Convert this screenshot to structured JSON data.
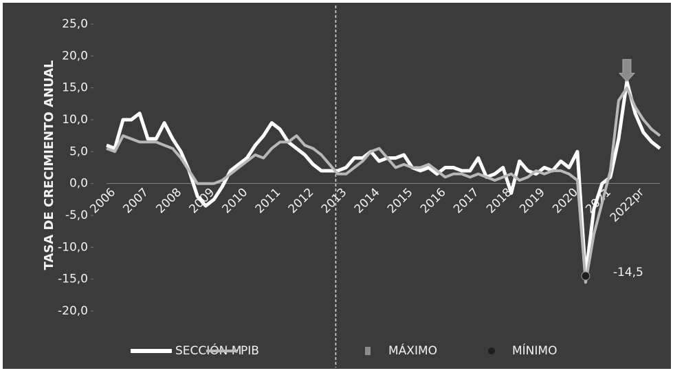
{
  "chart_data": {
    "type": "line",
    "y_axis_label": "TASA DE CRECIMIENTO ANUAL",
    "categories": [
      "2006",
      null,
      null,
      null,
      "2007",
      null,
      null,
      null,
      "2008",
      null,
      null,
      null,
      "2009",
      null,
      null,
      null,
      "2010",
      null,
      null,
      null,
      "2011",
      null,
      null,
      null,
      "2012",
      null,
      null,
      null,
      "2013",
      null,
      null,
      null,
      "2014",
      null,
      null,
      null,
      "2015",
      null,
      null,
      null,
      "2016",
      null,
      null,
      null,
      "2017",
      null,
      null,
      null,
      "2018",
      null,
      null,
      null,
      "2019",
      null,
      null,
      null,
      "2020",
      null,
      null,
      null,
      "2021",
      null,
      null,
      null,
      "2022pr",
      null,
      null,
      null
    ],
    "series": [
      {
        "name": "SECCIÓN M",
        "color": "#ffffff",
        "values": [
          6,
          5.5,
          10,
          10,
          11,
          7,
          7,
          9.5,
          7,
          5,
          2,
          -2,
          -3.5,
          -2.5,
          -0.5,
          2,
          3,
          4,
          6,
          7.5,
          9.5,
          8.5,
          6.5,
          5.5,
          4.5,
          3,
          2,
          2,
          2,
          2.5,
          4,
          4,
          5,
          3.5,
          4,
          4,
          4.5,
          2.5,
          2,
          2.5,
          1.5,
          2.5,
          2.5,
          2,
          2,
          4,
          1,
          1.5,
          2.5,
          -1.5,
          3.5,
          2,
          1.5,
          2.5,
          2,
          3.5,
          2.5,
          5,
          -14.5,
          -4,
          0,
          1,
          7,
          16,
          11,
          8,
          6.5,
          5.5
        ]
      },
      {
        "name": "PIB",
        "color": "#b8b8b8",
        "values": [
          5.5,
          5,
          7.5,
          7,
          6.5,
          6.5,
          6.5,
          6,
          5.5,
          4,
          2,
          0,
          0,
          0,
          0.5,
          1.5,
          2.5,
          3.5,
          4.5,
          4,
          5.5,
          6.5,
          6.5,
          7.5,
          6,
          5.5,
          4.5,
          3,
          1.5,
          1.5,
          2.5,
          3.5,
          5,
          5.5,
          4,
          2.5,
          3,
          2.5,
          2.5,
          3,
          2,
          1,
          1.5,
          1.5,
          1,
          1.5,
          1,
          0.5,
          1,
          1.5,
          0.5,
          1,
          2,
          1.5,
          2,
          2,
          1.5,
          0.5,
          -15.5,
          -8,
          -3,
          2,
          13,
          15,
          12,
          10,
          8.5,
          7.5
        ]
      },
      {
        "name": "MÁXIMO",
        "color": "#8c8c8c",
        "marker": "arrow",
        "values": [
          null,
          null,
          null,
          null,
          null,
          null,
          null,
          null,
          null,
          null,
          null,
          null,
          null,
          null,
          null,
          null,
          null,
          null,
          null,
          null,
          null,
          null,
          null,
          null,
          null,
          null,
          null,
          null,
          null,
          null,
          null,
          null,
          null,
          null,
          null,
          null,
          null,
          null,
          null,
          null,
          null,
          null,
          null,
          null,
          null,
          null,
          null,
          null,
          null,
          null,
          null,
          null,
          null,
          null,
          null,
          null,
          null,
          null,
          null,
          null,
          null,
          null,
          null,
          16,
          null,
          null,
          null,
          null
        ]
      },
      {
        "name": "MÍNIMO",
        "color": "#1e1e1e",
        "marker": "dot",
        "values": [
          null,
          null,
          null,
          null,
          null,
          null,
          null,
          null,
          null,
          null,
          null,
          null,
          null,
          null,
          null,
          null,
          null,
          null,
          null,
          null,
          null,
          null,
          null,
          null,
          null,
          null,
          null,
          null,
          null,
          null,
          null,
          null,
          null,
          null,
          null,
          null,
          null,
          null,
          null,
          null,
          null,
          null,
          null,
          null,
          null,
          null,
          null,
          null,
          null,
          null,
          null,
          null,
          null,
          null,
          null,
          null,
          null,
          null,
          -14.5,
          null,
          null,
          null,
          null,
          null,
          null,
          null,
          null,
          null
        ],
        "value_labels": [
          null,
          null,
          null,
          null,
          null,
          null,
          null,
          null,
          null,
          null,
          null,
          null,
          null,
          null,
          null,
          null,
          null,
          null,
          null,
          null,
          null,
          null,
          null,
          null,
          null,
          null,
          null,
          null,
          null,
          null,
          null,
          null,
          null,
          null,
          null,
          null,
          null,
          null,
          null,
          null,
          null,
          null,
          null,
          null,
          null,
          null,
          null,
          null,
          null,
          null,
          null,
          null,
          null,
          null,
          null,
          null,
          null,
          null,
          "-14,5",
          null,
          null,
          null,
          null,
          null,
          null,
          null,
          null,
          null
        ]
      }
    ],
    "ylim": [
      -20,
      25
    ],
    "yticks": [
      {
        "value": -20,
        "label": "-20,0"
      },
      {
        "value": -15,
        "label": "-15,0"
      },
      {
        "value": -10,
        "label": "-10,0"
      },
      {
        "value": -5,
        "label": "-5,0"
      },
      {
        "value": 0,
        "label": "0,0"
      },
      {
        "value": 5,
        "label": "5,0"
      },
      {
        "value": 10,
        "label": "10,0"
      },
      {
        "value": 15,
        "label": "15,0"
      },
      {
        "value": 20,
        "label": "20,0"
      },
      {
        "value": 25,
        "label": "25,0"
      }
    ],
    "grid": false
  }
}
